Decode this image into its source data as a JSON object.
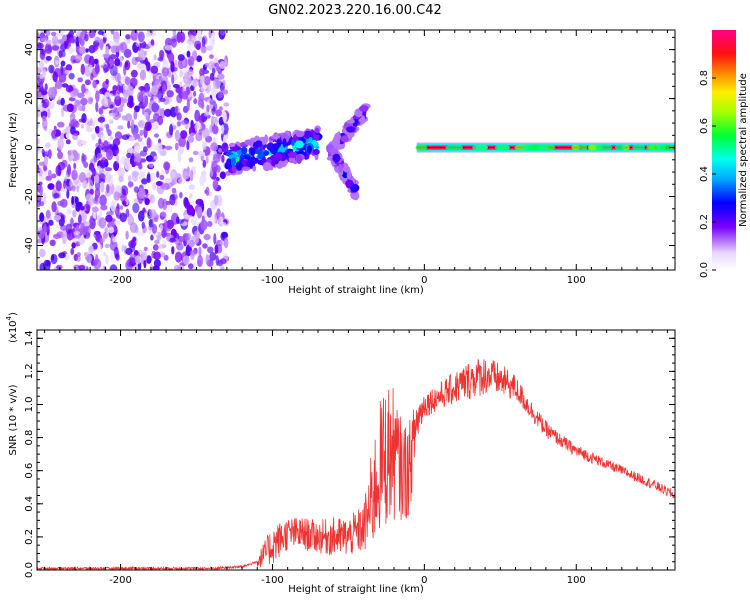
{
  "title": "GN02.2023.220.16.00.C42",
  "chart_data": [
    {
      "type": "heatmap",
      "xlabel": "Height of straight line (km)",
      "ylabel": "Frequency (Hz)",
      "xlim": [
        -255,
        165
      ],
      "ylim": [
        -50,
        48
      ],
      "xticks": [
        -200,
        -100,
        0,
        100
      ],
      "yticks": [
        -40,
        -20,
        0,
        20,
        40
      ],
      "colorbar": {
        "label": "Normalized spectral amplitude",
        "range": [
          0,
          1
        ],
        "ticks": [
          "0.0",
          "0.2",
          "0.4",
          "0.6",
          "0.8"
        ],
        "tick_values": [
          0.0,
          0.2,
          0.4,
          0.6,
          0.8
        ]
      },
      "features": [
        {
          "name": "noise",
          "x_range": [
            -255,
            -130
          ],
          "y_range": [
            -50,
            48
          ],
          "amplitude": 0.2
        },
        {
          "name": "band",
          "x_range": [
            -130,
            -70
          ],
          "y_center_start": -5,
          "y_center_end": 2,
          "amplitude": 0.5
        },
        {
          "name": "rising-streak",
          "x_range": [
            -62,
            -38
          ],
          "y_center_start": -2,
          "y_center_end": 16,
          "amplitude": 0.3
        },
        {
          "name": "falling-streak",
          "x_range": [
            -60,
            -45
          ],
          "y_center_start": -3,
          "y_center_end": -18,
          "amplitude": 0.3
        },
        {
          "name": "carrier",
          "x_range": [
            -5,
            165
          ],
          "y_center_start": 0,
          "y_center_end": 0,
          "amplitude": 1.0
        }
      ]
    },
    {
      "type": "line",
      "xlabel": "Height of straight line (km)",
      "ylabel": "SNR (10 * v/v)",
      "yscale_label": "(x10",
      "yscale_exp": "4",
      "xlim": [
        -255,
        165
      ],
      "ylim": [
        0.0,
        1.45
      ],
      "xticks": [
        -200,
        -100,
        0,
        100
      ],
      "yticks": [
        "0.0",
        "0.2",
        "0.4",
        "0.6",
        "0.8",
        "1.0",
        "1.2",
        "1.4"
      ],
      "ytick_values": [
        0.0,
        0.2,
        0.4,
        0.6,
        0.8,
        1.0,
        1.2,
        1.4
      ],
      "series": [
        {
          "color": "#ee3333",
          "x": [
            -255,
            -230,
            -200,
            -170,
            -140,
            -120,
            -110,
            -100,
            -90,
            -80,
            -70,
            -60,
            -50,
            -40,
            -35,
            -30,
            -25,
            -20,
            -15,
            -10,
            -5,
            0,
            10,
            20,
            30,
            40,
            50,
            60,
            70,
            80,
            90,
            100,
            110,
            120,
            130,
            140,
            150,
            165
          ],
          "y": [
            0.01,
            0.01,
            0.01,
            0.01,
            0.01,
            0.02,
            0.05,
            0.15,
            0.22,
            0.22,
            0.2,
            0.2,
            0.2,
            0.25,
            0.4,
            0.6,
            0.7,
            0.7,
            0.6,
            0.6,
            0.9,
            1.0,
            1.05,
            1.1,
            1.15,
            1.18,
            1.15,
            1.1,
            0.97,
            0.85,
            0.78,
            0.72,
            0.68,
            0.64,
            0.6,
            0.56,
            0.52,
            0.45
          ],
          "noise": [
            0,
            0,
            0,
            0,
            0,
            0.01,
            0.04,
            0.12,
            0.1,
            0.1,
            0.1,
            0.12,
            0.12,
            0.15,
            0.3,
            0.4,
            0.45,
            0.4,
            0.3,
            0.3,
            0.15,
            0.08,
            0.08,
            0.1,
            0.12,
            0.12,
            0.1,
            0.08,
            0.06,
            0.05,
            0.04,
            0.04,
            0.035,
            0.03,
            0.03,
            0.03,
            0.03,
            0.03
          ]
        }
      ]
    }
  ]
}
